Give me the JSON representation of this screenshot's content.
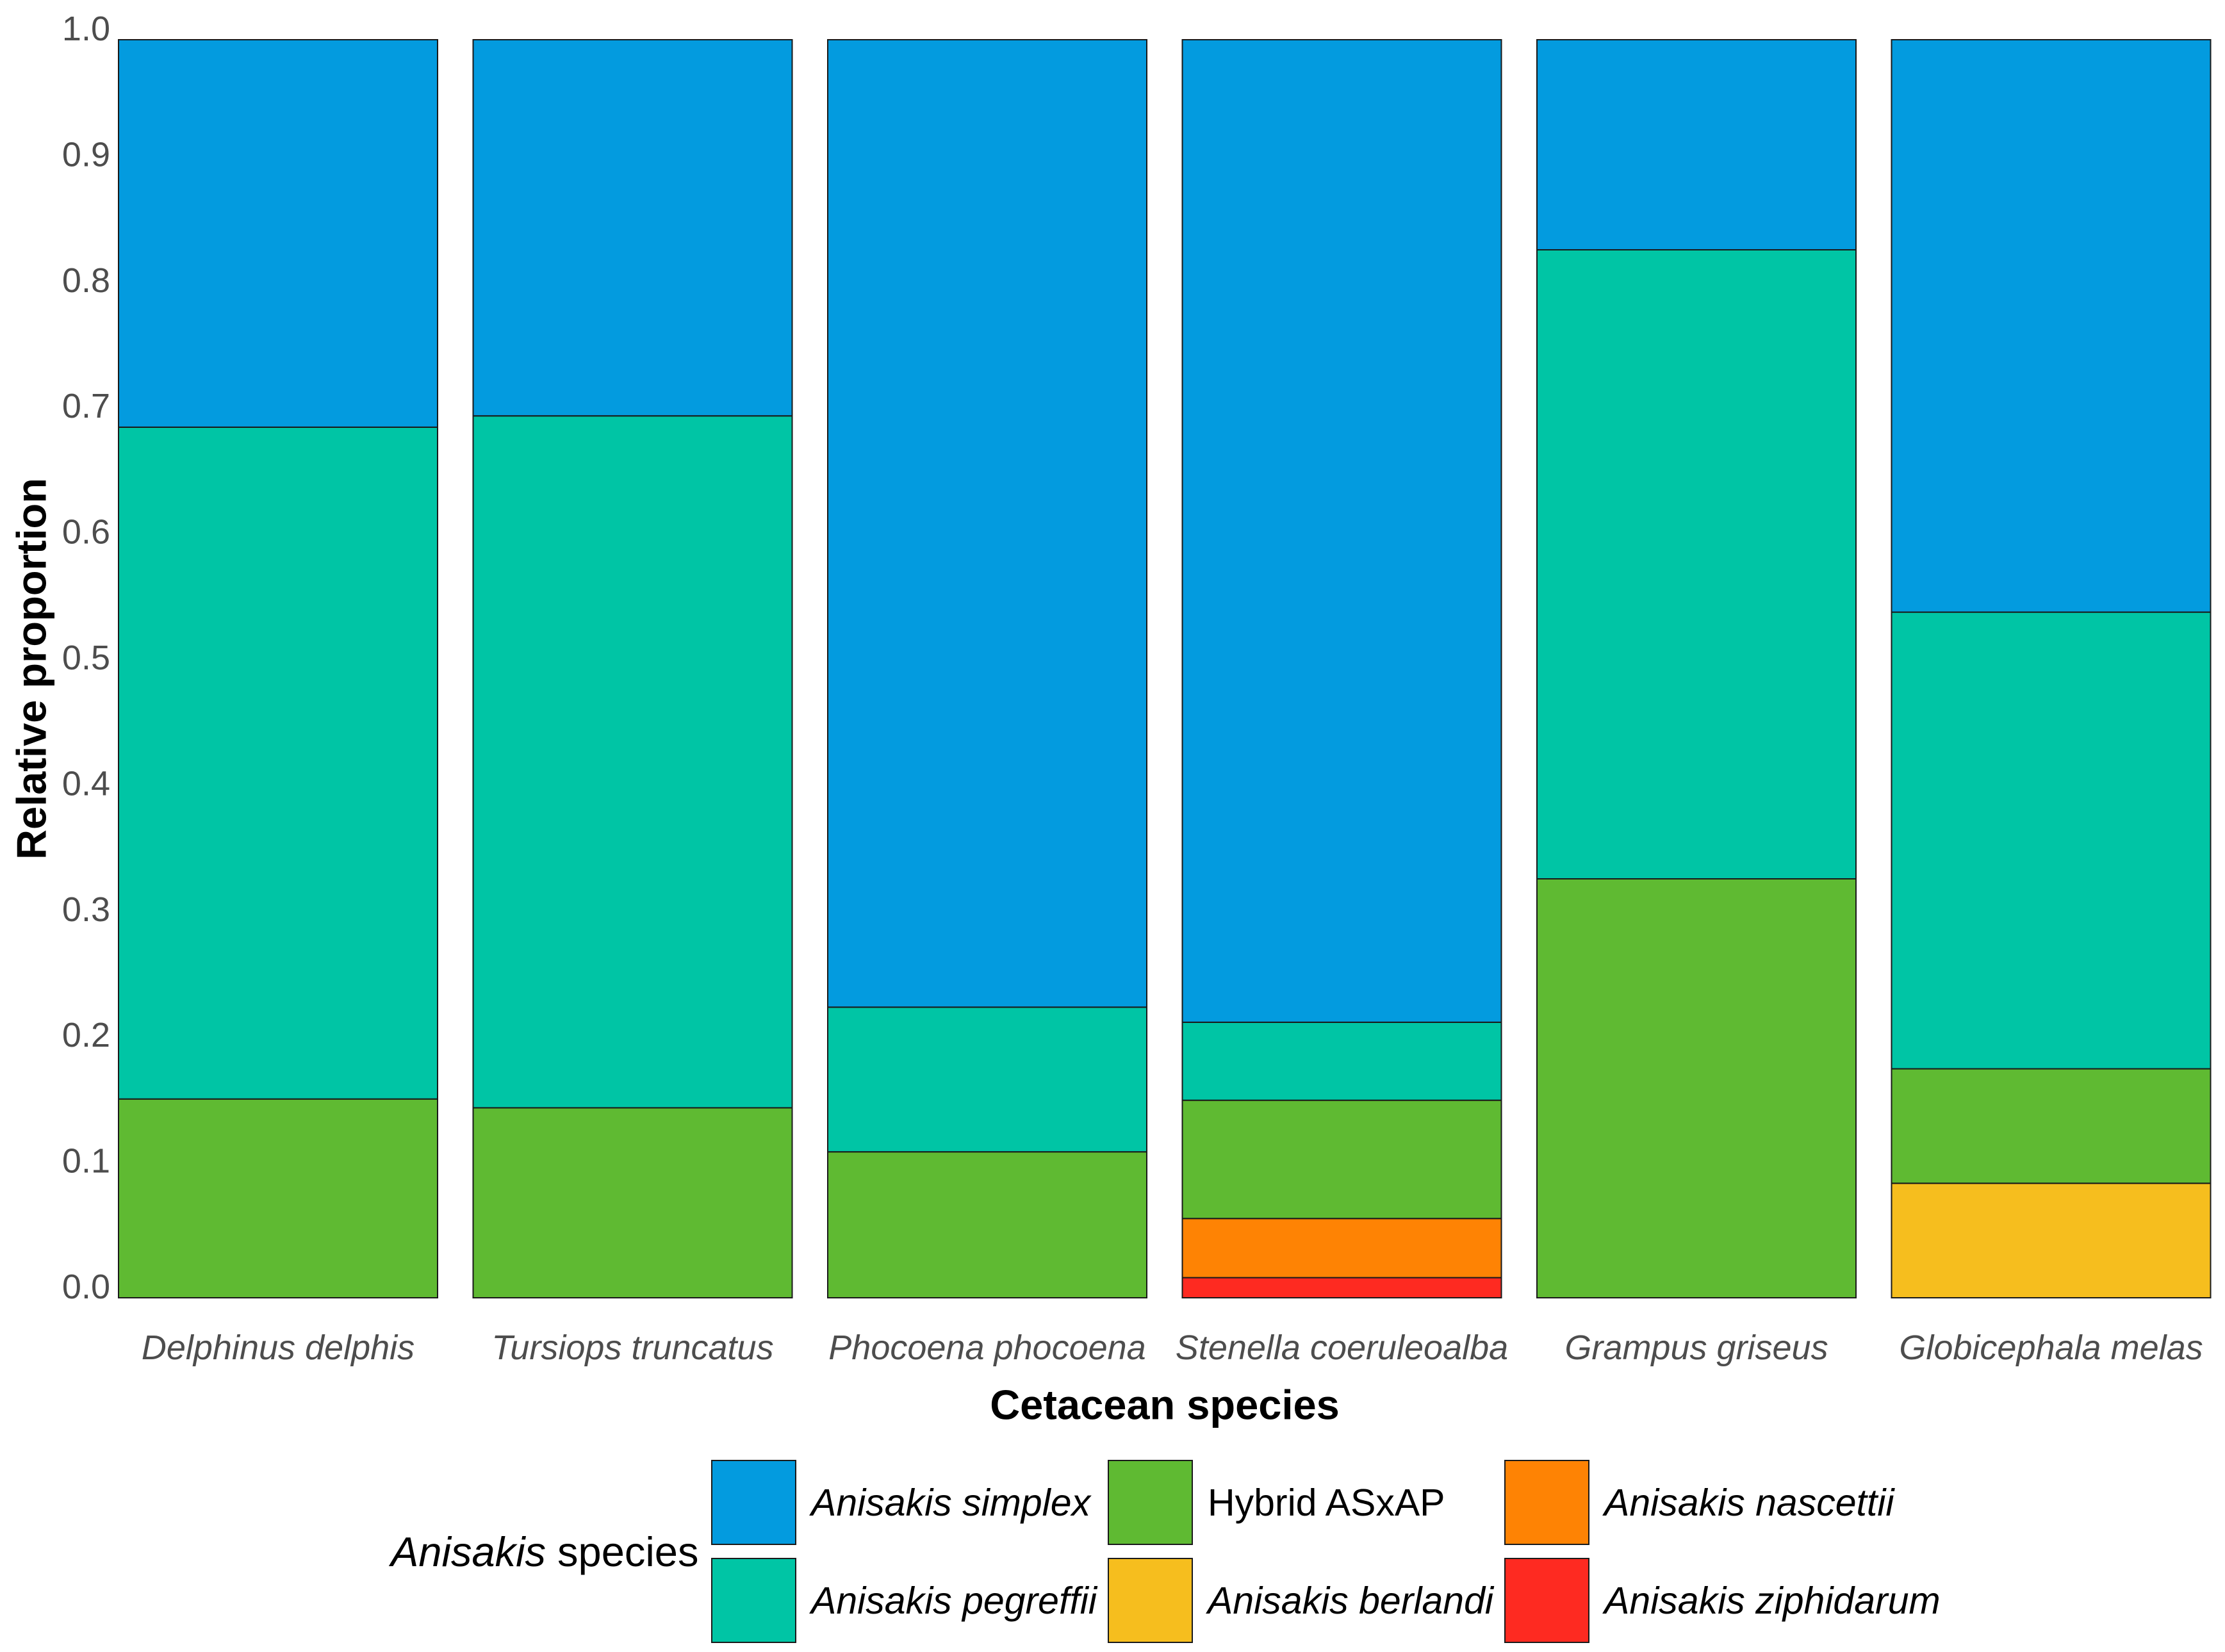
{
  "chart_data": {
    "type": "bar",
    "stacked": true,
    "xlabel": "Cetacean species",
    "ylabel": "Relative proportion",
    "ylim": [
      0,
      1
    ],
    "grid": false,
    "legend": "bottom",
    "y_ticks": [
      "0.0",
      "0.1",
      "0.2",
      "0.3",
      "0.4",
      "0.5",
      "0.6",
      "0.7",
      "0.8",
      "0.9",
      "1.0"
    ],
    "categories": [
      "Delphinus delphis",
      "Tursiops truncatus",
      "Phocoena phocoena",
      "Stenella coeruleoalba",
      "Grampus griseus",
      "Globicephala melas"
    ],
    "legend_title": {
      "italic_part": "Anisakis",
      "rest": "species"
    },
    "series": [
      {
        "name": "Anisakis simplex",
        "color": "#039BDF",
        "values": [
          0.308,
          0.299,
          0.769,
          0.781,
          0.167,
          0.455
        ]
      },
      {
        "name": "Anisakis pegreffii",
        "color": "#00C5A5",
        "values": [
          0.534,
          0.55,
          0.115,
          0.062,
          0.5,
          0.363
        ]
      },
      {
        "name": "Hybrid ASxAP",
        "color": "#5FBA32",
        "values": [
          0.158,
          0.151,
          0.116,
          0.094,
          0.333,
          0.091
        ]
      },
      {
        "name": "Anisakis berlandi",
        "color": "#F6BE1E",
        "values": [
          0,
          0,
          0,
          0,
          0,
          0.091
        ]
      },
      {
        "name": "Anisakis nascettii",
        "color": "#FE8304",
        "values": [
          0,
          0,
          0,
          0.047,
          0,
          0
        ]
      },
      {
        "name": "Anisakis ziphidarum",
        "color": "#FE2A21",
        "values": [
          0,
          0,
          0,
          0.016,
          0,
          0
        ]
      }
    ]
  }
}
